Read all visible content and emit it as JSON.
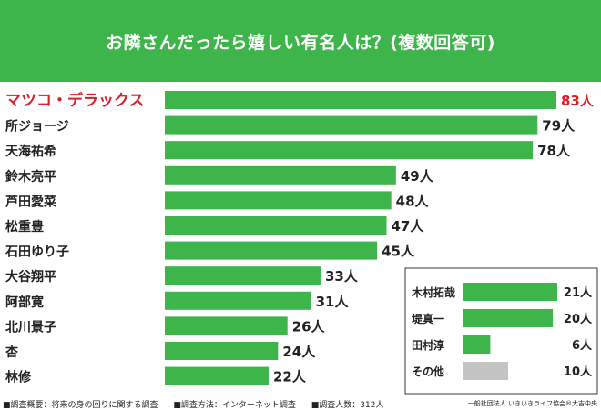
{
  "title": "お隣さんだったら嬉しい有名人は？(複数回答可)",
  "unit": "人",
  "colors": {
    "bar": "#3db54a",
    "other_bar": "#c4c4c4",
    "highlight_text": "#d6202a",
    "header_bg": "#3db54a"
  },
  "chart_data": [
    {
      "type": "bar",
      "orientation": "horizontal",
      "categories": [
        "マツコ・デラックス",
        "所ジョージ",
        "天海祐希",
        "鈴木亮平",
        "芦田愛菜",
        "松重豊",
        "石田ゆり子",
        "大谷翔平",
        "阿部寛",
        "北川景子",
        "杏",
        "林修"
      ],
      "values": [
        83,
        79,
        78,
        49,
        48,
        47,
        45,
        33,
        31,
        26,
        24,
        22
      ],
      "value_labels": [
        "83人",
        "79人",
        "78人",
        "49人",
        "48人",
        "47人",
        "45人",
        "33人",
        "31人",
        "26人",
        "24人",
        "22人"
      ],
      "highlight_index": 0,
      "xlim": [
        0,
        83
      ]
    },
    {
      "type": "bar",
      "orientation": "horizontal",
      "categories": [
        "木村拓哉",
        "堤真一",
        "田村淳",
        "その他"
      ],
      "values": [
        21,
        20,
        6,
        10
      ],
      "value_labels": [
        "21人",
        "20人",
        "6人",
        "10人"
      ],
      "other_index": 3,
      "xlim": [
        0,
        21
      ]
    }
  ],
  "footer": {
    "notes": [
      "■調査概要：将来の身の回りに関する調査",
      "■調査方法：インターネット調査",
      "■調査人数：312人"
    ],
    "credit": "一般社団法人 いきいきライフ協会®大吉中央"
  }
}
